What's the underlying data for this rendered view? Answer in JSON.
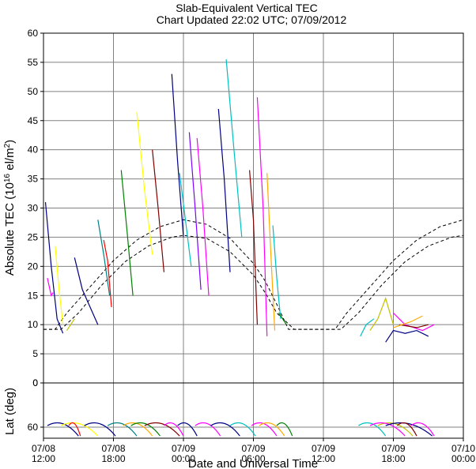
{
  "title": "Slab-Equivalent Vertical TEC",
  "subtitle": "Chart Updated 22:02 UTC; 07/09/2012",
  "chart_data": [
    {
      "type": "line",
      "name": "tec",
      "ylabel_main": "Absolute TEC (10",
      "ylabel_sup": "16",
      "ylabel_tail": " el/m",
      "ylabel_sup2": "2",
      "ylabel_close": ")",
      "ylim": [
        0,
        60
      ],
      "yticks": [
        0,
        5,
        10,
        15,
        20,
        25,
        30,
        35,
        40,
        45,
        50,
        55,
        60
      ],
      "xlim": [
        "07/08 12:00",
        "07/10 00:00"
      ],
      "x_hours": [
        0,
        6,
        12,
        18,
        24,
        30,
        36
      ],
      "grid": true,
      "model_curves": [
        {
          "points": [
            [
              "07/08 12:00",
              9.2
            ],
            [
              "07/08 13:00",
              9.2
            ],
            [
              "07/08 14:00",
              12
            ],
            [
              "07/08 16:00",
              16.5
            ],
            [
              "07/08 18:00",
              21
            ],
            [
              "07/08 20:00",
              24.5
            ],
            [
              "07/08 22:00",
              26.8
            ],
            [
              "07/09 00:00",
              28
            ],
            [
              "07/09 02:00",
              27.2
            ],
            [
              "07/09 04:00",
              24.8
            ],
            [
              "07/09 06:00",
              20.5
            ],
            [
              "07/09 07:00",
              17.5
            ],
            [
              "07/09 08:00",
              13.5
            ],
            [
              "07/09 09:00",
              9.2
            ],
            [
              "07/09 12:00",
              9.2
            ],
            [
              "07/09 13:00",
              9.2
            ],
            [
              "07/09 14:00",
              12
            ],
            [
              "07/09 16:00",
              16.5
            ],
            [
              "07/09 18:00",
              21
            ],
            [
              "07/09 20:00",
              24.5
            ],
            [
              "07/09 22:00",
              26.8
            ],
            [
              "07/10 00:00",
              28
            ]
          ]
        },
        {
          "points": [
            [
              "07/08 12:00",
              9.2
            ],
            [
              "07/08 13:30",
              9.2
            ],
            [
              "07/08 15:00",
              12
            ],
            [
              "07/08 17:00",
              16.8
            ],
            [
              "07/08 19:00",
              20.8
            ],
            [
              "07/08 21:00",
              23.5
            ],
            [
              "07/08 23:00",
              25
            ],
            [
              "07/09 00:00",
              25.3
            ],
            [
              "07/09 02:00",
              24.8
            ],
            [
              "07/09 04:00",
              22.5
            ],
            [
              "07/09 06:00",
              18.5
            ],
            [
              "07/09 07:00",
              15.5
            ],
            [
              "07/09 08:00",
              12
            ],
            [
              "07/09 09:30",
              9.2
            ],
            [
              "07/09 13:30",
              9.2
            ],
            [
              "07/09 15:00",
              12
            ],
            [
              "07/09 17:00",
              16.8
            ],
            [
              "07/09 19:00",
              20.8
            ],
            [
              "07/09 21:00",
              23.5
            ],
            [
              "07/09 23:00",
              25
            ],
            [
              "07/10 00:00",
              25.3
            ]
          ]
        }
      ],
      "satellite_tracks": [
        {
          "color": "#000080",
          "points": [
            [
              "07/08 12:10",
              31
            ],
            [
              "07/08 12:40",
              20
            ],
            [
              "07/08 13:10",
              11
            ],
            [
              "07/08 13:40",
              8.5
            ]
          ]
        },
        {
          "color": "#ff00ff",
          "points": [
            [
              "07/08 12:20",
              18
            ],
            [
              "07/08 12:40",
              15
            ],
            [
              "07/08 12:50",
              15.5
            ]
          ]
        },
        {
          "color": "#ffff00",
          "points": [
            [
              "07/08 13:00",
              23.5
            ],
            [
              "07/08 13:20",
              16
            ],
            [
              "07/08 13:40",
              10
            ]
          ]
        },
        {
          "color": "#c0c000",
          "points": [
            [
              "07/08 14:00",
              9
            ],
            [
              "07/08 14:20",
              10
            ],
            [
              "07/08 14:40",
              11
            ]
          ]
        },
        {
          "color": "#000080",
          "points": [
            [
              "07/08 14:40",
              21.5
            ],
            [
              "07/08 15:20",
              16
            ],
            [
              "07/08 16:40",
              10
            ]
          ]
        },
        {
          "color": "#008080",
          "points": [
            [
              "07/08 16:40",
              28
            ],
            [
              "07/08 17:10",
              22
            ],
            [
              "07/08 17:40",
              15
            ]
          ]
        },
        {
          "color": "#ff0000",
          "points": [
            [
              "07/08 17:10",
              24.5
            ],
            [
              "07/08 17:30",
              21
            ],
            [
              "07/08 17:50",
              13
            ]
          ]
        },
        {
          "color": "#008000",
          "points": [
            [
              "07/08 18:40",
              36.5
            ],
            [
              "07/08 19:10",
              26
            ],
            [
              "07/08 19:40",
              15
            ]
          ]
        },
        {
          "color": "#ffff00",
          "points": [
            [
              "07/08 20:00",
              46.5
            ],
            [
              "07/08 20:40",
              33
            ],
            [
              "07/08 21:20",
              22
            ]
          ]
        },
        {
          "color": "#800000",
          "points": [
            [
              "07/08 21:20",
              40
            ],
            [
              "07/08 21:50",
              30
            ],
            [
              "07/08 22:20",
              19
            ]
          ]
        },
        {
          "color": "#000080",
          "points": [
            [
              "07/08 23:00",
              53
            ],
            [
              "07/08 23:30",
              38
            ],
            [
              "07/09 00:00",
              25
            ]
          ]
        },
        {
          "color": "#00c0c0",
          "points": [
            [
              "07/08 23:40",
              36
            ],
            [
              "07/09 00:10",
              28
            ],
            [
              "07/09 00:40",
              20
            ]
          ]
        },
        {
          "color": "#8000ff",
          "points": [
            [
              "07/09 00:30",
              43
            ],
            [
              "07/09 01:00",
              30
            ],
            [
              "07/09 01:30",
              16
            ]
          ]
        },
        {
          "color": "#ff00ff",
          "points": [
            [
              "07/09 01:10",
              42
            ],
            [
              "07/09 01:40",
              30
            ],
            [
              "07/09 02:10",
              15
            ]
          ]
        },
        {
          "color": "#000080",
          "points": [
            [
              "07/09 03:00",
              47
            ],
            [
              "07/09 03:30",
              35
            ],
            [
              "07/09 04:00",
              19
            ]
          ]
        },
        {
          "color": "#00c0c0",
          "points": [
            [
              "07/09 03:40",
              55.5
            ],
            [
              "07/09 04:20",
              40
            ],
            [
              "07/09 05:00",
              25
            ]
          ]
        },
        {
          "color": "#800000",
          "points": [
            [
              "07/09 05:40",
              36.5
            ],
            [
              "07/09 06:00",
              28
            ],
            [
              "07/09 06:20",
              10
            ]
          ]
        },
        {
          "color": "#ff00ff",
          "points": [
            [
              "07/09 06:20",
              49
            ],
            [
              "07/09 06:50",
              30
            ],
            [
              "07/09 07:10",
              8
            ]
          ]
        },
        {
          "color": "#ffaa00",
          "points": [
            [
              "07/09 07:10",
              36
            ],
            [
              "07/09 07:30",
              22
            ],
            [
              "07/09 07:50",
              9
            ]
          ]
        },
        {
          "color": "#00c0c0",
          "points": [
            [
              "07/09 07:40",
              27
            ],
            [
              "07/09 08:00",
              18
            ],
            [
              "07/09 08:20",
              11
            ]
          ]
        },
        {
          "color": "#008000",
          "points": [
            [
              "07/09 08:10",
              12
            ],
            [
              "07/09 08:30",
              11
            ],
            [
              "07/09 08:50",
              10
            ]
          ]
        },
        {
          "color": "#00c0c0",
          "points": [
            [
              "07/09 15:10",
              8
            ],
            [
              "07/09 15:40",
              10
            ],
            [
              "07/09 16:20",
              11
            ]
          ]
        },
        {
          "color": "#c0c000",
          "points": [
            [
              "07/09 16:00",
              9
            ],
            [
              "07/09 16:40",
              11
            ],
            [
              "07/09 17:20",
              14.5
            ],
            [
              "07/09 18:00",
              10
            ]
          ]
        },
        {
          "color": "#000080",
          "points": [
            [
              "07/09 17:20",
              7
            ],
            [
              "07/09 18:00",
              9
            ],
            [
              "07/09 19:00",
              8.5
            ],
            [
              "07/09 20:00",
              9
            ],
            [
              "07/09 21:00",
              8
            ]
          ]
        },
        {
          "color": "#ff00ff",
          "points": [
            [
              "07/09 18:00",
              12
            ],
            [
              "07/09 19:00",
              10
            ],
            [
              "07/09 20:30",
              9
            ],
            [
              "07/09 21:30",
              10
            ]
          ]
        },
        {
          "color": "#800000",
          "points": [
            [
              "07/09 18:30",
              10
            ],
            [
              "07/09 20:00",
              9.5
            ],
            [
              "07/09 21:00",
              10
            ]
          ]
        },
        {
          "color": "#ffaa00",
          "points": [
            [
              "07/09 18:00",
              9.5
            ],
            [
              "07/09 19:30",
              10.5
            ],
            [
              "07/09 20:30",
              11.5
            ]
          ]
        }
      ]
    },
    {
      "type": "line",
      "name": "lat",
      "ylabel": "Lat (deg)",
      "ylim": [
        0,
        75
      ],
      "yticks": [
        0,
        60
      ],
      "xlim": [
        "07/08 12:00",
        "07/10 00:00"
      ],
      "grid": true,
      "arcs": [
        {
          "color": "#000080",
          "x0": "07/08 12:20",
          "x1": "07/08 15:00"
        },
        {
          "color": "#ffff00",
          "x0": "07/08 13:30",
          "x1": "07/08 16:40"
        },
        {
          "color": "#ff0000",
          "x0": "07/08 14:10",
          "x1": "07/08 15:10"
        },
        {
          "color": "#000080",
          "x0": "07/08 15:30",
          "x1": "07/08 18:10"
        },
        {
          "color": "#008080",
          "x0": "07/08 17:30",
          "x1": "07/08 20:00"
        },
        {
          "color": "#ffaa00",
          "x0": "07/08 18:50",
          "x1": "07/08 21:20"
        },
        {
          "color": "#008000",
          "x0": "07/08 19:30",
          "x1": "07/08 22:00"
        },
        {
          "color": "#800000",
          "x0": "07/08 20:40",
          "x1": "07/08 23:40"
        },
        {
          "color": "#ff00ff",
          "x0": "07/08 22:20",
          "x1": "07/09 00:00"
        },
        {
          "color": "#000080",
          "x0": "07/08 23:30",
          "x1": "07/09 01:10"
        },
        {
          "color": "#ff00ff",
          "x0": "07/09 01:00",
          "x1": "07/09 03:10"
        },
        {
          "color": "#000080",
          "x0": "07/09 02:20",
          "x1": "07/09 04:50"
        },
        {
          "color": "#00c0c0",
          "x0": "07/09 04:00",
          "x1": "07/09 06:10"
        },
        {
          "color": "#ff00ff",
          "x0": "07/09 05:50",
          "x1": "07/09 08:00"
        },
        {
          "color": "#ffaa00",
          "x0": "07/09 06:30",
          "x1": "07/09 08:40"
        },
        {
          "color": "#008000",
          "x0": "07/09 08:00",
          "x1": "07/09 09:20"
        },
        {
          "color": "#00c0c0",
          "x0": "07/09 15:00",
          "x1": "07/09 17:20"
        },
        {
          "color": "#c0c000",
          "x0": "07/09 16:40",
          "x1": "07/09 19:40"
        },
        {
          "color": "#ff00ff",
          "x0": "07/09 16:00",
          "x1": "07/09 19:00"
        },
        {
          "color": "#000080",
          "x0": "07/09 17:20",
          "x1": "07/09 21:20"
        },
        {
          "color": "#800000",
          "x0": "07/09 18:20",
          "x1": "07/09 20:00"
        },
        {
          "color": "#ff00ff",
          "x0": "07/09 19:30",
          "x1": "07/09 21:30"
        }
      ]
    }
  ],
  "xtick_labels": [
    {
      "date": "07/08",
      "time": "12:00"
    },
    {
      "date": "07/08",
      "time": "18:00"
    },
    {
      "date": "07/09",
      "time": "00:00"
    },
    {
      "date": "07/09",
      "time": "06:00"
    },
    {
      "date": "07/09",
      "time": "12:00"
    },
    {
      "date": "07/09",
      "time": "18:00"
    },
    {
      "date": "07/10",
      "time": "00:00"
    }
  ],
  "xlabel": "Date and Universal Time"
}
